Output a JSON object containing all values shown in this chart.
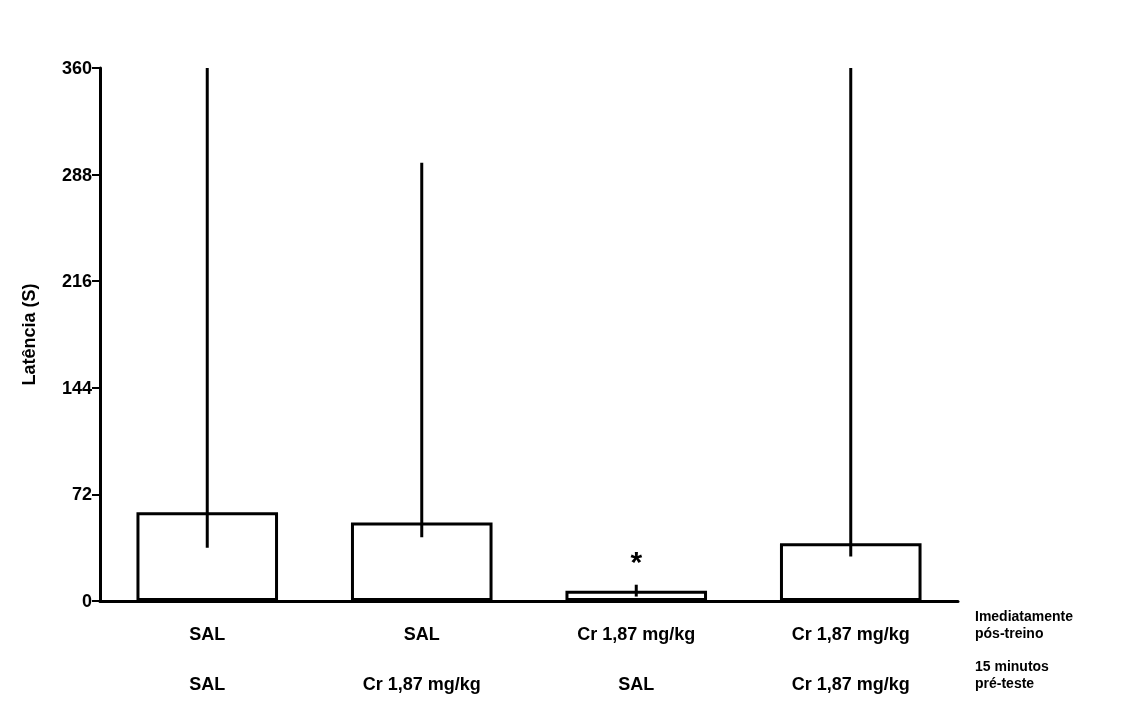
{
  "chart_data": {
    "type": "bar",
    "ylabel": "Latência (S)",
    "categories": [
      "SAL\nSAL",
      "SAL\nCr 1,87 mg/kg",
      "Cr 1,87 mg/kg\nSAL",
      "Cr 1,87 mg/kg\nCr 1,87 mg/kg"
    ],
    "values": [
      60,
      53,
      7,
      39
    ],
    "color": "#ffffff",
    "errors": [
      [
        36,
        360
      ],
      [
        43,
        296
      ],
      [
        3,
        11
      ],
      [
        30,
        360
      ]
    ],
    "ylim": [
      0,
      360
    ],
    "yticks": [
      0,
      72,
      144,
      216,
      288,
      360
    ],
    "grid": false,
    "value_labels": [
      null,
      null,
      "*",
      null
    ],
    "annotations": [
      "Imediatamente\npós-treino",
      "15 minutos\npré-teste"
    ]
  }
}
